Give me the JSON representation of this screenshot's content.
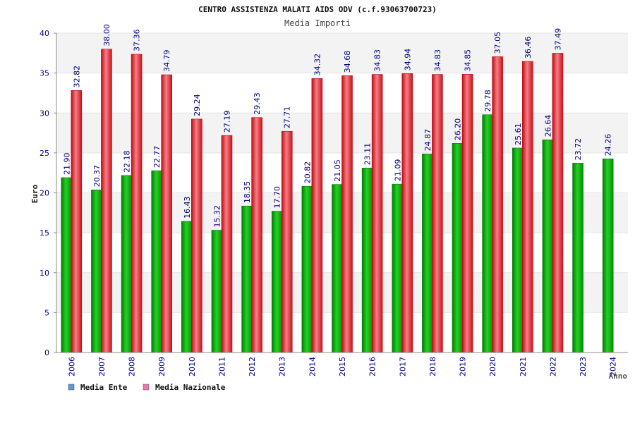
{
  "chart_data": {
    "type": "bar",
    "title": "CENTRO ASSISTENZA MALATI AIDS ODV (c.f.93063700723)",
    "subtitle": "Media Importi",
    "xlabel": "Anno",
    "ylabel": "Euro",
    "ylim": [
      0,
      40
    ],
    "yticks": [
      "0",
      "5",
      "10",
      "15",
      "20",
      "25",
      "30",
      "35",
      "40"
    ],
    "categories": [
      "2006",
      "2007",
      "2008",
      "2009",
      "2010",
      "2011",
      "2012",
      "2013",
      "2014",
      "2015",
      "2016",
      "2017",
      "2018",
      "2019",
      "2020",
      "2021",
      "2022",
      "2023",
      "2024"
    ],
    "series": [
      {
        "name": "Media Ente",
        "color": "#11b511",
        "legend_color": "#5b9bd5",
        "values": [
          21.9,
          20.37,
          22.18,
          22.77,
          16.43,
          15.32,
          18.35,
          17.7,
          20.82,
          21.05,
          23.11,
          21.09,
          24.87,
          26.2,
          29.78,
          25.61,
          26.64,
          23.72,
          24.26
        ],
        "labels": [
          "21.90",
          "20.37",
          "22.18",
          "22.77",
          "16.43",
          "15.32",
          "18.35",
          "17.70",
          "20.82",
          "21.05",
          "23.11",
          "21.09",
          "24.87",
          "26.20",
          "29.78",
          "25.61",
          "26.64",
          "23.72",
          "24.26"
        ]
      },
      {
        "name": "Media Nazionale",
        "color": "#ee1c25",
        "legend_color": "#e87aa8",
        "values": [
          32.82,
          38.0,
          37.36,
          34.79,
          29.24,
          27.19,
          29.43,
          27.71,
          34.32,
          34.68,
          34.83,
          34.94,
          34.83,
          34.85,
          37.05,
          36.46,
          37.49,
          null,
          null
        ],
        "labels": [
          "32.82",
          "38.00",
          "37.36",
          "34.79",
          "29.24",
          "27.19",
          "29.43",
          "27.71",
          "34.32",
          "34.68",
          "34.83",
          "34.94",
          "34.83",
          "34.85",
          "37.05",
          "36.46",
          "37.49",
          "",
          ""
        ]
      }
    ],
    "grid": true,
    "legend": "bottom-left",
    "colors": {
      "band": "#f3f3f3",
      "axis_text": "#00008b",
      "value_text": "#000080"
    }
  }
}
